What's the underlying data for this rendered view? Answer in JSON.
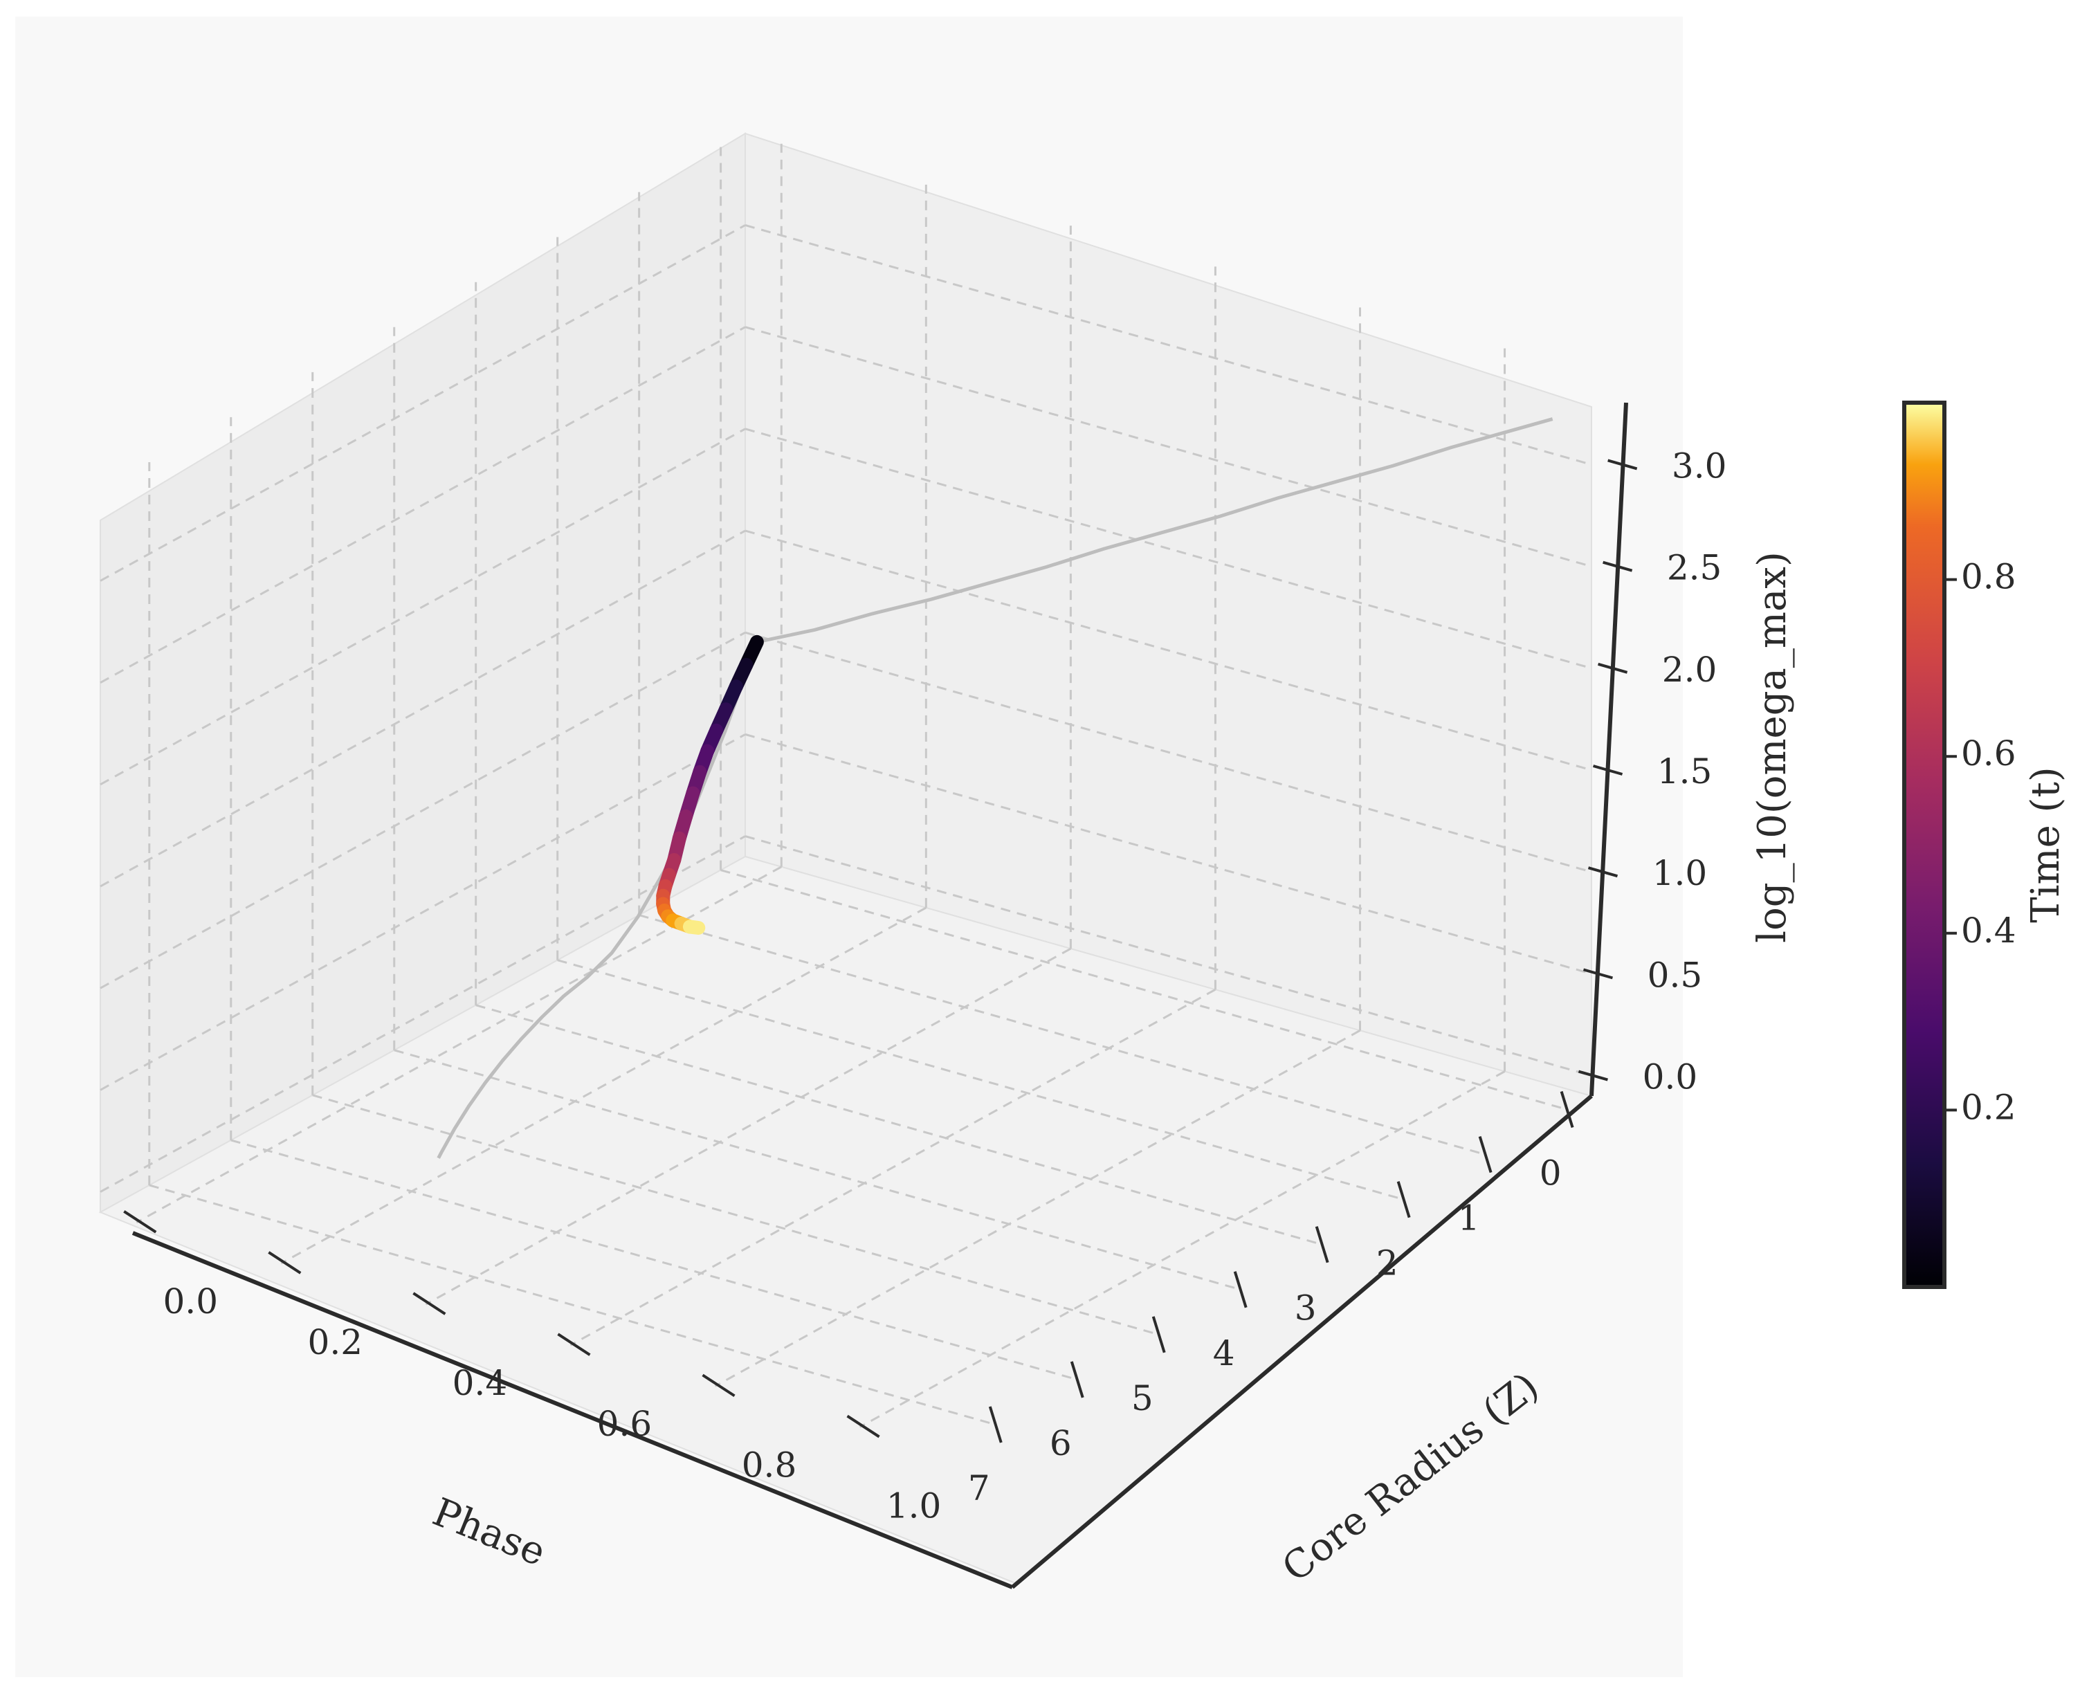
{
  "chart_data": {
    "type": "line",
    "projection": "3d",
    "x_axis": {
      "label": "Phase",
      "ticks": [
        0,
        1,
        2,
        3,
        4,
        5,
        6,
        7
      ],
      "range": [
        -0.3,
        7.6
      ]
    },
    "y_axis": {
      "label": "Core Radius (Z)",
      "ticks": [
        "0.0",
        "0.2",
        "0.4",
        "0.6",
        "0.8",
        "1.0"
      ],
      "range": [
        -0.05,
        1.12
      ]
    },
    "z_axis": {
      "label": "log_10(omega_max)",
      "ticks": [
        "0.0",
        "0.5",
        "1.0",
        "1.5",
        "2.0",
        "2.5",
        "3.0"
      ],
      "range": [
        -0.1,
        3.45
      ]
    },
    "colorbar": {
      "label": "Time (t)",
      "ticks": [
        "0.2",
        "0.4",
        "0.6",
        "0.8"
      ],
      "range": [
        0.0,
        1.0
      ],
      "colormap": "inferno"
    },
    "grid": true,
    "pane_color": "#eeeeee",
    "grid_color": "#c8c8c8",
    "series": [
      {
        "style": "colored-by-time",
        "t": [
          0.0,
          0.05,
          0.1,
          0.15,
          0.2,
          0.25,
          0.3,
          0.35,
          0.4,
          0.45,
          0.5,
          0.55,
          0.6,
          0.65,
          0.7,
          0.75,
          0.8,
          0.85,
          0.9,
          0.95,
          1.0
        ],
        "x": [
          0.0,
          0.14,
          0.29,
          0.46,
          0.63,
          0.82,
          1.01,
          1.2,
          1.42,
          1.65,
          1.9,
          2.14,
          2.38,
          2.62,
          2.86,
          3.1,
          3.35,
          3.6,
          3.85,
          4.1,
          4.35
        ],
        "y": [
          0.0,
          0.001,
          0.004,
          0.009,
          0.015,
          0.024,
          0.035,
          0.047,
          0.062,
          0.079,
          0.1,
          0.12,
          0.142,
          0.166,
          0.193,
          0.222,
          0.255,
          0.29,
          0.33,
          0.37,
          0.41
        ],
        "z": [
          1.07,
          0.99,
          0.92,
          0.85,
          0.79,
          0.74,
          0.69,
          0.64,
          0.59,
          0.55,
          0.52,
          0.52,
          0.54,
          0.57,
          0.61,
          0.66,
          0.72,
          0.79,
          0.87,
          0.95,
          1.04
        ]
      },
      {
        "style": "projection",
        "color": "#bdbdbd",
        "x": [
          0.0,
          0.0,
          0.0,
          0.0,
          0.0,
          0.0,
          0.0,
          0.0,
          0.0,
          0.0,
          0.0,
          0.0,
          0.0,
          0.0,
          0.0
        ],
        "y": [
          0.0,
          0.08,
          0.16,
          0.24,
          0.32,
          0.4,
          0.48,
          0.56,
          0.64,
          0.72,
          0.8,
          0.88,
          0.96,
          1.04,
          1.1
        ],
        "z": [
          1.07,
          1.21,
          1.37,
          1.52,
          1.68,
          1.84,
          2.01,
          2.17,
          2.33,
          2.5,
          2.66,
          2.82,
          2.99,
          3.15,
          3.27
        ]
      },
      {
        "style": "projection",
        "color": "#bdbdbd",
        "x": [
          0.0,
          0.4,
          0.8,
          1.2,
          1.6,
          2.0,
          2.4,
          2.8,
          3.2,
          3.6,
          4.0,
          4.4,
          4.8,
          5.2,
          5.6,
          5.7
        ],
        "y": [
          0.0,
          0.001,
          0.004,
          0.009,
          0.016,
          0.025,
          0.036,
          0.049,
          0.064,
          0.081,
          0.1,
          0.121,
          0.144,
          0.169,
          0.196,
          0.203
        ],
        "z": [
          1.07,
          0.72,
          0.44,
          0.23,
          0.09,
          0.01,
          -0.01,
          0.0,
          0.0,
          0.0,
          0.0,
          0.0,
          0.0,
          0.0,
          0.0,
          0.0
        ]
      }
    ]
  }
}
